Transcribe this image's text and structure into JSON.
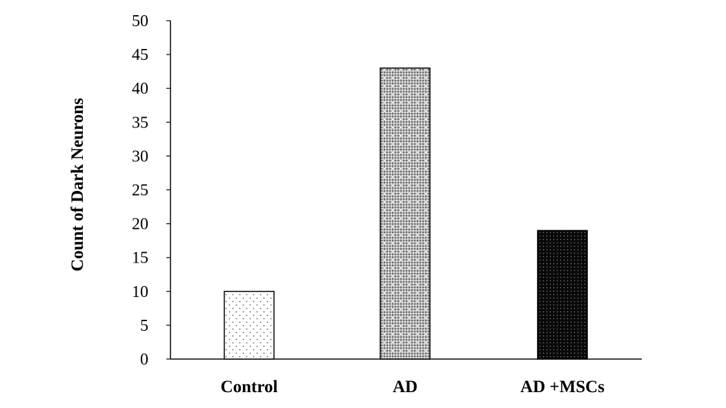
{
  "chart_data": {
    "type": "bar",
    "title": "",
    "xlabel": "",
    "ylabel": "Count of Dark Neurons",
    "categories": [
      "Control",
      "AD",
      "AD +MSCs"
    ],
    "values": [
      10,
      43,
      19
    ],
    "ylim": [
      0,
      50
    ],
    "yticks": [
      "0",
      "5",
      "10",
      "15",
      "20",
      "25",
      "30",
      "35",
      "40",
      "45",
      "50"
    ],
    "grid": false,
    "legend": "none",
    "bar_fills": [
      "light-sparse-dots",
      "gray-checker",
      "black-dense-dots"
    ],
    "colors": {
      "axis": "#000000",
      "bar_outline": "#000000",
      "background": "#ffffff"
    }
  }
}
